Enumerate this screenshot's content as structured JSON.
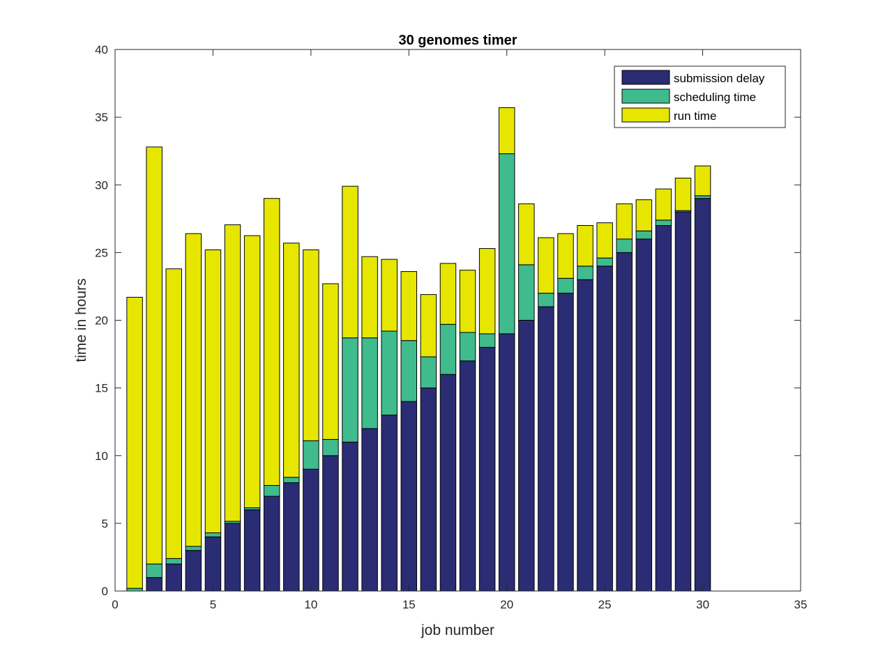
{
  "chart_data": {
    "type": "bar",
    "stacked": true,
    "title": "30 genomes timer",
    "xlabel": "job number",
    "ylabel": "time in hours",
    "xlim": [
      0,
      35
    ],
    "ylim": [
      0,
      40
    ],
    "xticks": [
      0,
      5,
      10,
      15,
      20,
      25,
      30,
      35
    ],
    "yticks": [
      0,
      5,
      10,
      15,
      20,
      25,
      30,
      35,
      40
    ],
    "grid": false,
    "legend_position": "top-right",
    "x": [
      1,
      2,
      3,
      4,
      5,
      6,
      7,
      8,
      9,
      10,
      11,
      12,
      13,
      14,
      15,
      16,
      17,
      18,
      19,
      20,
      21,
      22,
      23,
      24,
      25,
      26,
      27,
      28,
      29,
      30
    ],
    "series": [
      {
        "name": "submission delay",
        "color": "#2a2d74",
        "values": [
          0,
          1,
          2,
          3,
          4,
          5,
          6,
          7,
          8,
          9,
          10,
          11,
          12,
          13,
          14,
          15,
          16,
          17,
          18,
          19,
          20,
          21,
          22,
          23,
          24,
          25,
          26,
          27,
          28,
          29
        ]
      },
      {
        "name": "scheduling time",
        "color": "#3fbb8e",
        "values": [
          0.2,
          1.0,
          0.4,
          0.3,
          0.3,
          0.15,
          0.15,
          0.8,
          0.4,
          2.1,
          1.2,
          7.7,
          6.7,
          6.2,
          4.5,
          2.3,
          3.7,
          2.1,
          1.0,
          13.3,
          4.1,
          1.0,
          1.1,
          1.0,
          0.6,
          1.0,
          0.6,
          0.4,
          0.1,
          0.2
        ]
      },
      {
        "name": "run time",
        "color": "#e6e600",
        "values": [
          21.5,
          30.8,
          21.4,
          23.1,
          20.9,
          21.9,
          20.1,
          21.2,
          17.3,
          14.1,
          11.5,
          11.2,
          6.0,
          5.3,
          5.1,
          4.6,
          4.5,
          4.6,
          6.3,
          3.4,
          4.5,
          4.1,
          3.3,
          3.0,
          2.6,
          2.6,
          2.3,
          2.3,
          2.4,
          2.2
        ]
      }
    ]
  }
}
